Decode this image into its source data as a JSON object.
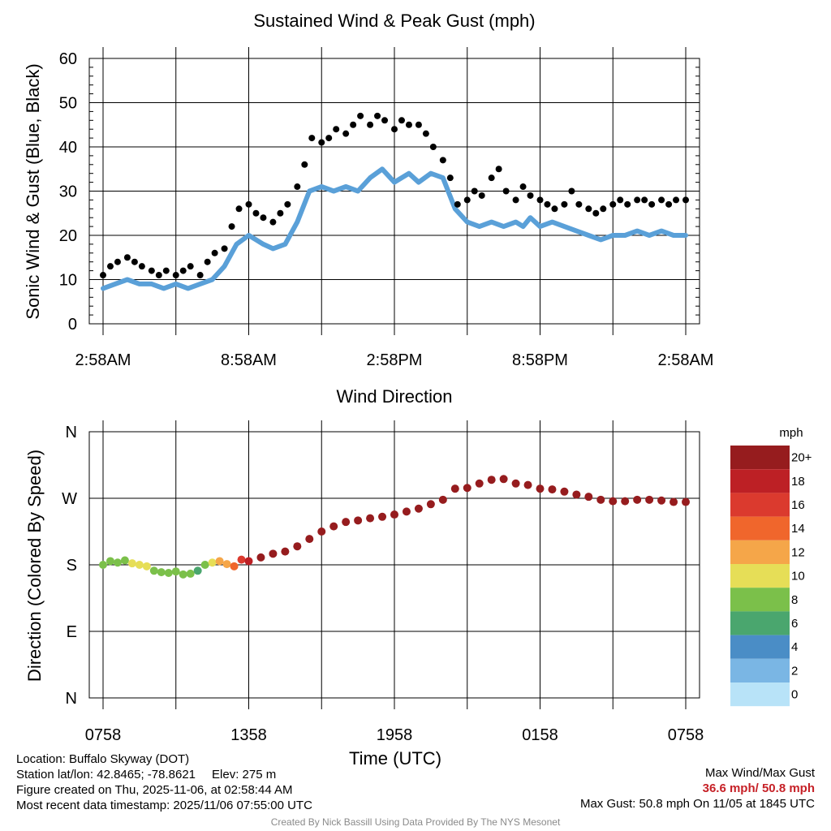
{
  "chart_data": [
    {
      "type": "scatter",
      "title": "Sustained Wind & Peak Gust (mph)",
      "ylabel": "Sonic Wind & Gust (Blue, Black)",
      "xlabel": "",
      "ylim": [
        0,
        60
      ],
      "xlim_hours": [
        0,
        24
      ],
      "y_ticks": [
        "0",
        "10",
        "20",
        "30",
        "40",
        "50",
        "60"
      ],
      "x_ticks": [
        "2:58AM",
        "8:58AM",
        "2:58PM",
        "8:58PM",
        "2:58AM"
      ],
      "grid": true,
      "series": [
        {
          "name": "Sustained Wind",
          "color": "#5aa0d8",
          "style": "thick-line",
          "x": [
            0,
            0.5,
            1,
            1.5,
            2,
            2.5,
            3,
            3.5,
            4,
            4.5,
            5,
            5.5,
            6,
            6.3,
            6.6,
            7,
            7.5,
            8,
            8.5,
            9,
            9.5,
            10,
            10.5,
            11,
            11.5,
            12,
            12.3,
            12.6,
            13,
            13.5,
            14,
            14.5,
            15,
            15.5,
            16,
            16.5,
            17,
            17.3,
            17.6,
            18,
            18.5,
            19,
            19.5,
            20,
            20.5,
            21,
            21.5,
            22,
            22.5,
            23,
            23.5,
            24
          ],
          "y": [
            8,
            9,
            10,
            9,
            9,
            8,
            9,
            8,
            9,
            10,
            13,
            18,
            20,
            19,
            18,
            17,
            18,
            23,
            30,
            31,
            30,
            31,
            30,
            33,
            35,
            32,
            33,
            34,
            32,
            34,
            33,
            26,
            23,
            22,
            23,
            22,
            23,
            22,
            24,
            22,
            23,
            22,
            21,
            20,
            19,
            20,
            20,
            21,
            20,
            21,
            20,
            20
          ]
        },
        {
          "name": "Peak Gust",
          "color": "#000000",
          "style": "dots",
          "x": [
            0,
            0.3,
            0.6,
            1,
            1.3,
            1.6,
            2,
            2.3,
            2.6,
            3,
            3.3,
            3.6,
            4,
            4.3,
            4.6,
            5,
            5.3,
            5.6,
            6,
            6.3,
            6.6,
            7,
            7.3,
            7.6,
            8,
            8.3,
            8.6,
            9,
            9.3,
            9.6,
            10,
            10.3,
            10.6,
            11,
            11.3,
            11.6,
            12,
            12.3,
            12.6,
            13,
            13.3,
            13.6,
            14,
            14.3,
            14.6,
            15,
            15.3,
            15.6,
            16,
            16.3,
            16.6,
            17,
            17.3,
            17.6,
            18,
            18.3,
            18.6,
            19,
            19.3,
            19.6,
            20,
            20.3,
            20.6,
            21,
            21.3,
            21.6,
            22,
            22.3,
            22.6,
            23,
            23.3,
            23.6,
            24
          ],
          "y": [
            11,
            13,
            14,
            15,
            14,
            13,
            12,
            11,
            12,
            11,
            12,
            13,
            11,
            14,
            16,
            17,
            22,
            26,
            27,
            25,
            24,
            23,
            25,
            27,
            31,
            36,
            42,
            41,
            42,
            44,
            43,
            45,
            47,
            45,
            47,
            46,
            44,
            46,
            45,
            45,
            43,
            40,
            37,
            33,
            27,
            28,
            30,
            29,
            33,
            35,
            30,
            28,
            31,
            29,
            28,
            27,
            26,
            27,
            30,
            27,
            26,
            25,
            26,
            27,
            28,
            27,
            28,
            28,
            27,
            28,
            27,
            28,
            28
          ]
        }
      ]
    },
    {
      "type": "scatter",
      "title": "Wind Direction",
      "ylabel": "Direction (Colored By Speed)",
      "xlabel": "Time (UTC)",
      "ylim": [
        0,
        360
      ],
      "xlim_hours": [
        0,
        24
      ],
      "y_ticks": [
        "N",
        "E",
        "S",
        "W",
        "N"
      ],
      "x_ticks": [
        "0758",
        "1358",
        "1958",
        "0158",
        "0758"
      ],
      "grid": true,
      "x": [
        0,
        0.3,
        0.6,
        0.9,
        1.2,
        1.5,
        1.8,
        2.1,
        2.4,
        2.7,
        3,
        3.3,
        3.6,
        3.9,
        4.2,
        4.5,
        4.8,
        5.1,
        5.4,
        5.7,
        6,
        6.5,
        7,
        7.5,
        8,
        8.5,
        9,
        9.5,
        10,
        10.5,
        11,
        11.5,
        12,
        12.5,
        13,
        13.5,
        14,
        14.5,
        15,
        15.5,
        16,
        16.5,
        17,
        17.5,
        18,
        18.5,
        19,
        19.5,
        20,
        20.5,
        21,
        21.5,
        22,
        22.5,
        23,
        23.5,
        24
      ],
      "direction_deg": [
        180,
        185,
        183,
        186,
        182,
        180,
        178,
        172,
        170,
        169,
        171,
        167,
        168,
        172,
        180,
        183,
        185,
        181,
        178,
        187,
        185,
        190,
        195,
        198,
        205,
        215,
        225,
        232,
        238,
        240,
        243,
        245,
        248,
        252,
        256,
        262,
        268,
        283,
        284,
        290,
        295,
        296,
        290,
        288,
        283,
        282,
        279,
        275,
        272,
        268,
        266,
        266,
        268,
        268,
        267,
        265,
        265
      ],
      "speed_mph": [
        7,
        7,
        8,
        8,
        9,
        9,
        10,
        8,
        7,
        7,
        7,
        7,
        7,
        6,
        8,
        10,
        12,
        11,
        14,
        16,
        18,
        19,
        20,
        20,
        20,
        20,
        20,
        20,
        20,
        20,
        20,
        20,
        20,
        20,
        20,
        20,
        20,
        20,
        20,
        20,
        20,
        20,
        20,
        20,
        20,
        20,
        20,
        20,
        20,
        20,
        20,
        20,
        20,
        20,
        20,
        20,
        20
      ],
      "legend": {
        "title": "mph",
        "labels": [
          "20+",
          "18",
          "16",
          "14",
          "12",
          "10",
          "8",
          "6",
          "4",
          "2",
          "0"
        ],
        "colors": [
          "#961c1e",
          "#bd2025",
          "#db3a2e",
          "#f0662c",
          "#f5a649",
          "#e6de57",
          "#7bc04a",
          "#4aa66e",
          "#4a8dc6",
          "#7ab6e4",
          "#b8e3f8"
        ]
      }
    }
  ],
  "footer": {
    "location": "Location: Buffalo Skyway (DOT)",
    "station": "Station lat/lon: 42.8465; -78.8621",
    "elev": "Elev: 275 m",
    "created": "Figure created on Thu, 2025-11-06, at 02:58:44 AM",
    "recent": "Most recent data timestamp: 2025/11/06 07:55:00 UTC",
    "max_label": "Max Wind/Max Gust",
    "max_values": "36.6 mph/ 50.8 mph",
    "max_gust": "Max Gust: 50.8 mph On 11/05 at 1845 UTC",
    "credit": "Created By Nick Bassill Using Data Provided By The NYS Mesonet"
  }
}
